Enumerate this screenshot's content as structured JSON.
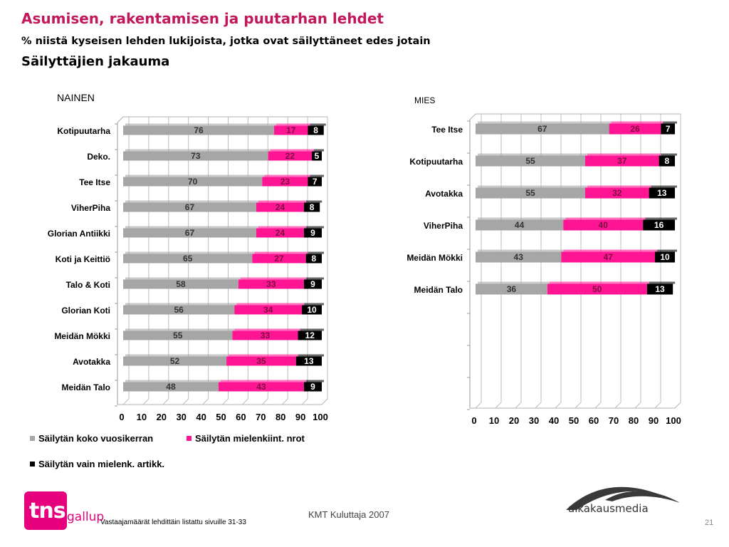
{
  "title": "Asumisen, rakentamisen ja puutarhan lehdet",
  "subtitle": "% niistä kyseisen lehden lukijoista, jotka ovat säilyttäneet edes jotain",
  "subtitle2": "Säilyttäjien jakauma",
  "colors": {
    "series1": "#a6a6a6",
    "series2": "#ff1493",
    "series3": "#000000",
    "title": "#c2185b"
  },
  "chart_data": [
    {
      "type": "bar",
      "orientation": "horizontal",
      "stacked": true,
      "title": "NAINEN",
      "categories": [
        "Kotipuutarha",
        "Deko.",
        "Tee Itse",
        "ViherPiha",
        "Glorian Antiikki",
        "Koti ja Keittiö",
        "Talo & Koti",
        "Glorian Koti",
        "Meidän Mökki",
        "Avotakka",
        "Meidän Talo"
      ],
      "series": [
        {
          "name": "Säilytän koko vuosikerran",
          "values": [
            76,
            73,
            70,
            67,
            67,
            65,
            58,
            56,
            55,
            52,
            48
          ]
        },
        {
          "name": "Säilytän mielenkiint. nrot",
          "values": [
            17,
            22,
            23,
            24,
            24,
            27,
            33,
            34,
            33,
            35,
            43
          ]
        },
        {
          "name": "Säilytän vain mielenk. artikk.",
          "values": [
            8,
            5,
            7,
            8,
            9,
            8,
            9,
            10,
            12,
            13,
            9
          ]
        }
      ],
      "xticks": [
        "0",
        "10",
        "20",
        "30",
        "40",
        "50",
        "60",
        "70",
        "80",
        "90",
        "100"
      ],
      "xlim": [
        0,
        100
      ]
    },
    {
      "type": "bar",
      "orientation": "horizontal",
      "stacked": true,
      "title": "MIES",
      "categories": [
        "Tee Itse",
        "Kotipuutarha",
        "Avotakka",
        "ViherPiha",
        "Meidän Mökki",
        "Meidän Talo"
      ],
      "series": [
        {
          "name": "Säilytän koko vuosikerran",
          "values": [
            67,
            55,
            55,
            44,
            43,
            36
          ]
        },
        {
          "name": "Säilytän mielenkiint. nrot",
          "values": [
            26,
            37,
            32,
            40,
            47,
            50
          ]
        },
        {
          "name": "Säilytän vain mielenk. artikk.",
          "values": [
            7,
            8,
            13,
            16,
            10,
            13
          ]
        }
      ],
      "xticks": [
        "0",
        "10",
        "20",
        "30",
        "40",
        "50",
        "60",
        "70",
        "80",
        "90",
        "100"
      ],
      "xlim": [
        0,
        100
      ]
    }
  ],
  "legend": [
    {
      "label": "Säilytän koko vuosikerran",
      "color": "#a6a6a6"
    },
    {
      "label": "Säilytän mielenkiint. nrot",
      "color": "#ff1493"
    },
    {
      "label": "Säilytän vain mielenk. artikk.",
      "color": "#000000"
    }
  ],
  "footer": {
    "note": "Vastaajamäärät lehdittäin listattu sivuille 31-33",
    "source": "KMT Kuluttaja 2007",
    "page": "21",
    "logo_left_text": "tns",
    "logo_left_sub": "gallup",
    "logo_right_text": "aikakausmedia"
  }
}
